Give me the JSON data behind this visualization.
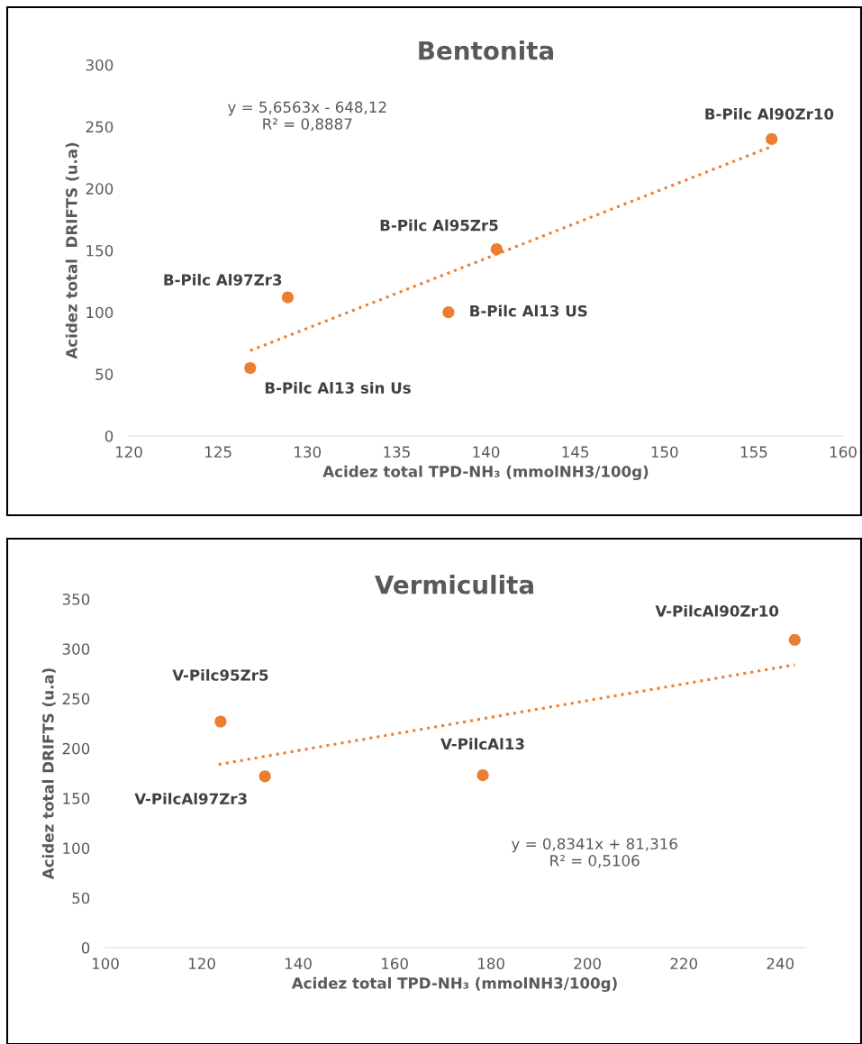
{
  "chart_data": [
    {
      "type": "scatter",
      "title": "Bentonita",
      "xlabel": "Acidez total TPD-NH₃ (mmolNH3/100g)",
      "ylabel": "Acidez total  DRIFTS (u.a)",
      "xlim": [
        120,
        160
      ],
      "xticks": [
        120,
        125,
        130,
        135,
        140,
        145,
        150,
        155,
        160
      ],
      "ylim": [
        0,
        300
      ],
      "yticks": [
        0,
        50,
        100,
        150,
        200,
        250,
        300
      ],
      "grid": false,
      "legend": false,
      "series": [
        {
          "type": "scatter",
          "color": "#ed7d31",
          "marker": "circle",
          "x": [
            126.8,
            128.9,
            140.6,
            137.9,
            156.0
          ],
          "values": [
            55,
            112,
            151,
            100,
            240
          ]
        },
        {
          "type": "line",
          "color": "#ed7d31",
          "line_style": "dotted",
          "marker": "none",
          "x": [
            126.8,
            156.0
          ],
          "values": [
            69,
            234
          ]
        }
      ],
      "annotations": [
        {
          "text": "B-Pilc Al13 sin Us",
          "x": 126.8,
          "y": 55
        },
        {
          "text": "B-Pilc Al97Zr3",
          "x": 128.9,
          "y": 112
        },
        {
          "text": "B-Pilc Al95Zr5",
          "x": 140.6,
          "y": 151
        },
        {
          "text": "B-Pilc Al13 US",
          "x": 137.9,
          "y": 100
        },
        {
          "text": "B-Pilc Al90Zr10",
          "x": 156.0,
          "y": 240
        },
        "y = 5,6563x - 648,12\nR² = 0,8887"
      ]
    },
    {
      "type": "scatter",
      "title": "Vermiculita",
      "xlabel": "Acidez total TPD-NH₃ (mmolNH3/100g)",
      "ylabel": "Acidez total DRIFTS (u.a)",
      "xlim": [
        100,
        245
      ],
      "xticks": [
        100,
        120,
        140,
        160,
        180,
        200,
        220,
        240
      ],
      "ylim": [
        0,
        350
      ],
      "yticks": [
        0,
        50,
        100,
        150,
        200,
        250,
        300,
        350
      ],
      "grid": false,
      "legend": false,
      "series": [
        {
          "type": "scatter",
          "color": "#ed7d31",
          "marker": "circle",
          "x": [
            123.9,
            133.1,
            178.3,
            243.0
          ],
          "values": [
            227,
            172,
            173,
            309
          ]
        },
        {
          "type": "line",
          "color": "#ed7d31",
          "line_style": "dotted",
          "marker": "none",
          "x": [
            123.5,
            243.0
          ],
          "values": [
            184,
            284
          ]
        }
      ],
      "annotations": [
        {
          "text": "V-Pilc95Zr5",
          "x": 123.9,
          "y": 227
        },
        {
          "text": "V-PilcAl97Zr3",
          "x": 133.1,
          "y": 172
        },
        {
          "text": "V-PilcAl13",
          "x": 178.3,
          "y": 173
        },
        {
          "text": "V-PilcAl90Zr10",
          "x": 243.0,
          "y": 309
        },
        "y = 0,8341x + 81,316\nR² = 0,5106"
      ]
    }
  ]
}
